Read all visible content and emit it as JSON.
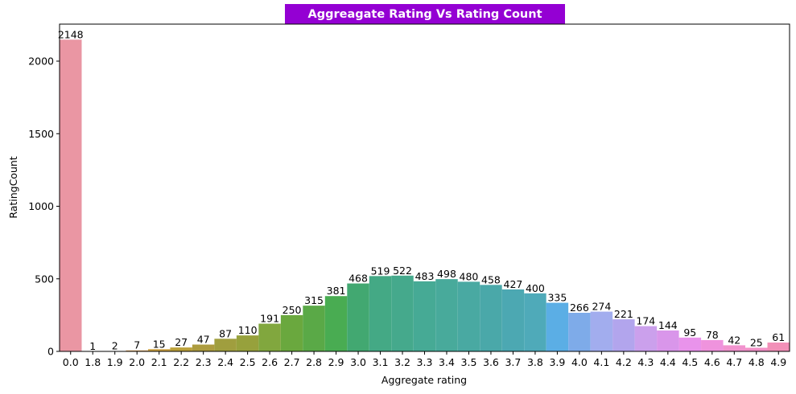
{
  "chart_data": {
    "type": "bar",
    "title": "Aggreagate Rating Vs Rating Count",
    "xlabel": "Aggregate rating",
    "ylabel": "RatingCount",
    "ylim": [
      0,
      2255
    ],
    "yticks": [
      0,
      500,
      1000,
      1500,
      2000
    ],
    "grid": false,
    "categories": [
      "0.0",
      "1.8",
      "1.9",
      "2.0",
      "2.1",
      "2.2",
      "2.3",
      "2.4",
      "2.5",
      "2.6",
      "2.7",
      "2.8",
      "2.9",
      "3.0",
      "3.1",
      "3.2",
      "3.3",
      "3.4",
      "3.5",
      "3.6",
      "3.7",
      "3.8",
      "3.9",
      "4.0",
      "4.1",
      "4.2",
      "4.3",
      "4.4",
      "4.5",
      "4.6",
      "4.7",
      "4.8",
      "4.9"
    ],
    "values": [
      2148,
      1,
      2,
      7,
      15,
      27,
      47,
      87,
      110,
      191,
      250,
      315,
      381,
      468,
      519,
      522,
      483,
      498,
      480,
      458,
      427,
      400,
      335,
      266,
      274,
      221,
      174,
      144,
      95,
      78,
      42,
      25,
      61
    ],
    "colors": [
      "#ea96a3",
      "#ea979d",
      "#e49a7e",
      "#d9a05b",
      "#ca9f3f",
      "#bba13a",
      "#ad9c3f",
      "#a09e3e",
      "#97a13c",
      "#81a73e",
      "#6aa83e",
      "#5aa947",
      "#49ac52",
      "#42a871",
      "#44a985",
      "#45a98c",
      "#46aa95",
      "#48aa9b",
      "#49a9a2",
      "#4aa8a9",
      "#4ca8b2",
      "#4faab9",
      "#5baee5",
      "#7eabe9",
      "#a2adee",
      "#b2a5ed",
      "#cba0ec",
      "#d996ea",
      "#e993eb",
      "#ef93dd",
      "#f193ce",
      "#f291c7",
      "#f290b8"
    ],
    "title_bg": "#9400d3"
  }
}
